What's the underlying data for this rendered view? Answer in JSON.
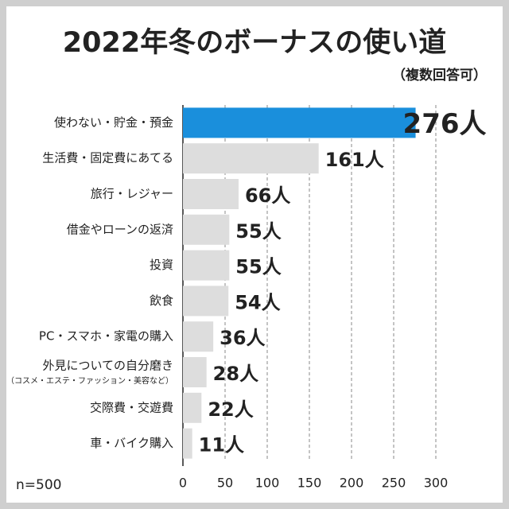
{
  "chart_data": {
    "type": "hbar",
    "title": "2022年冬のボーナスの使い道",
    "subtitle": "（複数回答可）",
    "categories": [
      "使わない・貯金・預金",
      "生活費・固定費にあてる",
      "旅行・レジャー",
      "借金やローンの返済",
      "投資",
      "飲食",
      "PC・スマホ・家電の購入",
      "外見についての自分磨き",
      "交際費・交遊費",
      "車・バイク購入"
    ],
    "annotation": "（コスメ・エステ・ファッション・美容など）",
    "values": [
      276,
      161,
      66,
      55,
      55,
      54,
      36,
      28,
      22,
      11
    ],
    "value_labels": [
      "276人",
      "161人",
      "66人",
      "55人",
      "55人",
      "54人",
      "36人",
      "28人",
      "22人",
      "11人"
    ],
    "colors": [
      "#1a8fdc",
      "#dddddd",
      "#dddddd",
      "#dddddd",
      "#dddddd",
      "#dddddd",
      "#dddddd",
      "#dddddd",
      "#dddddd",
      "#dddddd"
    ],
    "xlim": [
      0,
      300
    ],
    "xticks": [
      0,
      50,
      100,
      150,
      200,
      250,
      300
    ],
    "grid": true,
    "note": "n=500"
  }
}
